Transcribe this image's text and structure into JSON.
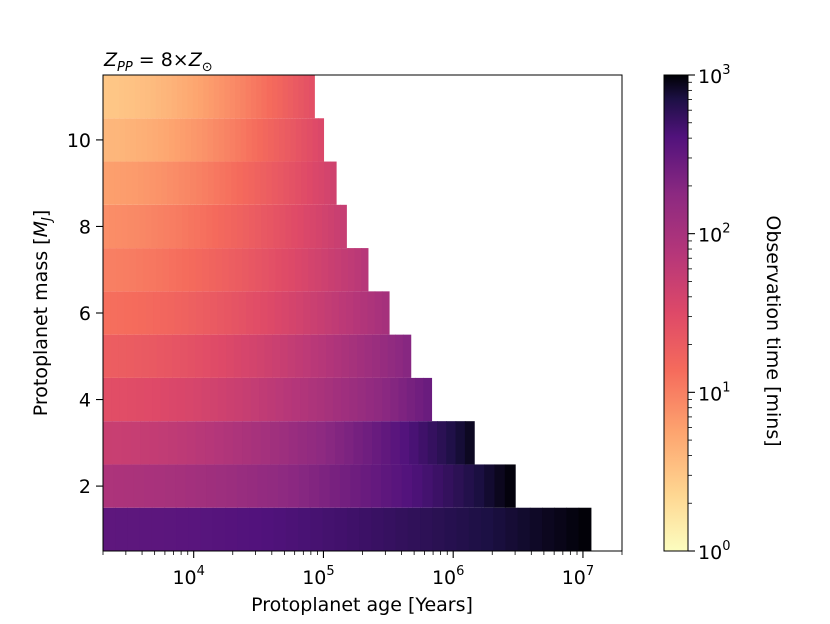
{
  "chart_data": {
    "type": "heatmap",
    "title": "Z_PP = 8×Z_⊙",
    "title_parts": {
      "z": "Z",
      "z_sub": "PP",
      "mid": " = 8×",
      "zs": "Z",
      "zs_sub": "⊙"
    },
    "xlabel": "Protoplanet age [Years]",
    "ylabel": "Protoplanet mass [",
    "ylabel_unit": "M",
    "ylabel_unit_sub": "J",
    "ylabel_end": "]",
    "x_scale": "log",
    "xlim": [
      2000,
      20000000
    ],
    "x_ticks": [
      {
        "label": "10",
        "exp": "4",
        "value": 10000
      },
      {
        "label": "10",
        "exp": "5",
        "value": 100000
      },
      {
        "label": "10",
        "exp": "6",
        "value": 1000000
      },
      {
        "label": "10",
        "exp": "7",
        "value": 10000000
      }
    ],
    "ylim": [
      0.5,
      11.5
    ],
    "y_ticks": [
      2,
      4,
      6,
      8,
      10
    ],
    "colorbar": {
      "label": "Observation time [mins]",
      "scale": "log",
      "range": [
        1,
        1000
      ],
      "colormap": "magma_r",
      "ticks": [
        {
          "label": "10",
          "exp": "0",
          "value": 1
        },
        {
          "label": "10",
          "exp": "1",
          "value": 10
        },
        {
          "label": "10",
          "exp": "2",
          "value": 100
        },
        {
          "label": "10",
          "exp": "3",
          "value": 1000
        }
      ]
    },
    "rows": [
      {
        "mass": 1,
        "max_age": 11500000,
        "time_start": 340,
        "time_end": 1000
      },
      {
        "mass": 2,
        "max_age": 3000000,
        "time_start": 90,
        "time_end": 1000
      },
      {
        "mass": 3,
        "max_age": 1450000,
        "time_start": 50,
        "time_end": 900
      },
      {
        "mass": 4,
        "max_age": 680000,
        "time_start": 28,
        "time_end": 300
      },
      {
        "mass": 5,
        "max_age": 470000,
        "time_start": 19,
        "time_end": 200
      },
      {
        "mass": 6,
        "max_age": 320000,
        "time_start": 13,
        "time_end": 110
      },
      {
        "mass": 7,
        "max_age": 220000,
        "time_start": 10,
        "time_end": 75
      },
      {
        "mass": 8,
        "max_age": 150000,
        "time_start": 8,
        "time_end": 55
      },
      {
        "mass": 9,
        "max_age": 125000,
        "time_start": 6,
        "time_end": 45
      },
      {
        "mass": 10,
        "max_age": 100000,
        "time_start": 4,
        "time_end": 35
      },
      {
        "mass": 11,
        "max_age": 85000,
        "time_start": 3,
        "time_end": 28
      }
    ]
  }
}
